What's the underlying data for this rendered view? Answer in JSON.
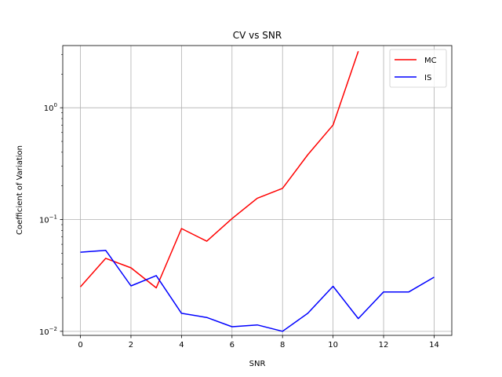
{
  "chart_data": {
    "type": "line",
    "title": "CV vs SNR",
    "xlabel": "SNR",
    "ylabel": "Coefficient of Variation",
    "yscale": "log",
    "xlim": [
      -0.7,
      14.7
    ],
    "ylim": [
      0.0092,
      3.6
    ],
    "grid": true,
    "legend_position": "top-right",
    "x_ticks": [
      0,
      2,
      4,
      6,
      8,
      10,
      12,
      14
    ],
    "y_ticks": [
      {
        "value": 0.01,
        "base": "10",
        "exp": "−2"
      },
      {
        "value": 0.1,
        "base": "10",
        "exp": "−1"
      },
      {
        "value": 1,
        "base": "10",
        "exp": "0"
      }
    ],
    "series": [
      {
        "name": "MC",
        "color": "#ff0000",
        "x": [
          0,
          1,
          2,
          3,
          4,
          5,
          6,
          7,
          8,
          9,
          10,
          11
        ],
        "y": [
          0.025,
          0.045,
          0.037,
          0.0245,
          0.083,
          0.064,
          0.102,
          0.155,
          0.19,
          0.38,
          0.7,
          3.2
        ]
      },
      {
        "name": "IS",
        "color": "#0000ff",
        "x": [
          0,
          1,
          2,
          3,
          4,
          5,
          6,
          7,
          8,
          9,
          10,
          11,
          12,
          13,
          14
        ],
        "y": [
          0.051,
          0.053,
          0.0255,
          0.0315,
          0.0145,
          0.0133,
          0.011,
          0.0114,
          0.01,
          0.0145,
          0.0253,
          0.013,
          0.0225,
          0.0225,
          0.0305
        ]
      }
    ]
  }
}
